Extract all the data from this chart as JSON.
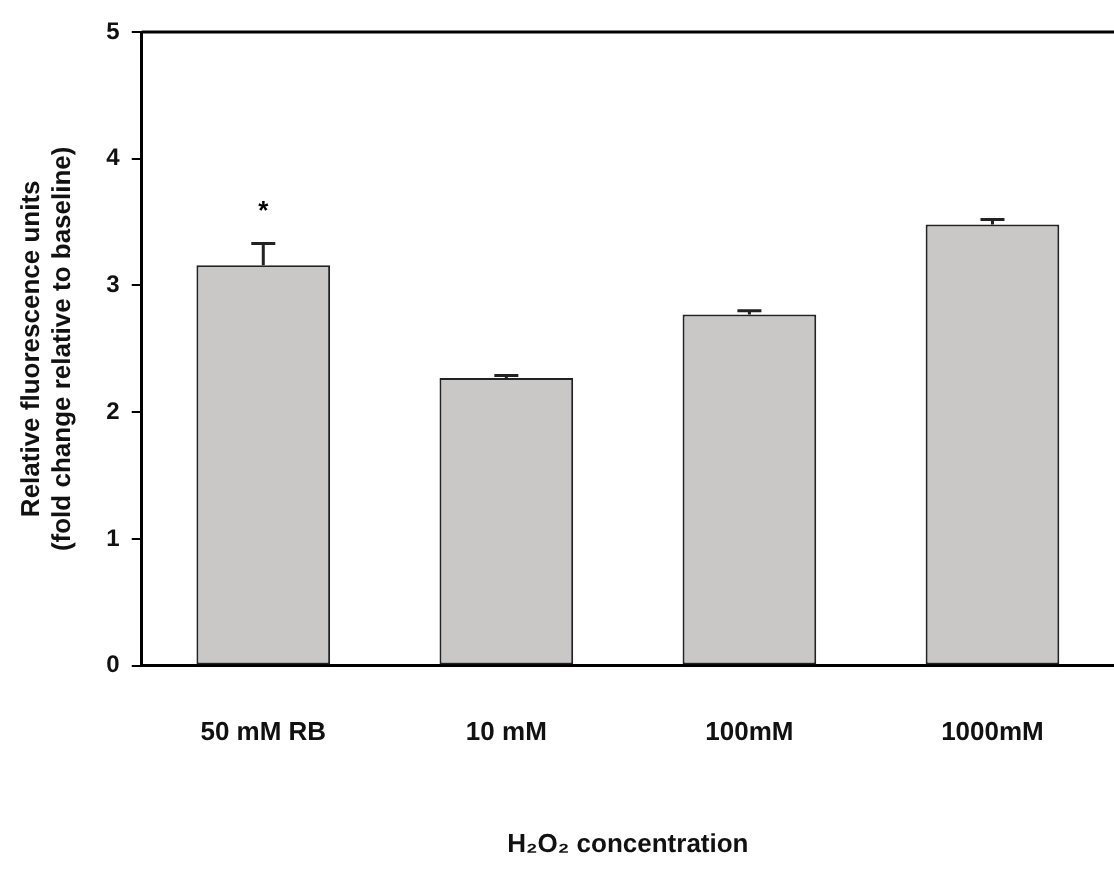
{
  "chart_data": {
    "type": "bar",
    "categories": [
      "50 mM RB",
      "10 mM",
      "100mM",
      "1000mM"
    ],
    "values": [
      3.16,
      2.27,
      2.77,
      3.48
    ],
    "errors": [
      [
        3.16,
        3.33
      ],
      [
        2.27,
        2.29
      ],
      [
        2.77,
        2.8
      ],
      [
        3.48,
        3.52
      ]
    ],
    "color": "#c9c8c6",
    "xlabel": "H₂O₂ concentration",
    "ylabel": "Relative fluorescence units\n(fold change relative to baseline)",
    "ylim": [
      0,
      5
    ],
    "yticks": [
      0,
      1,
      2,
      3,
      4,
      5
    ],
    "annotations": [
      "*"
    ],
    "grid": false,
    "legend": false
  }
}
